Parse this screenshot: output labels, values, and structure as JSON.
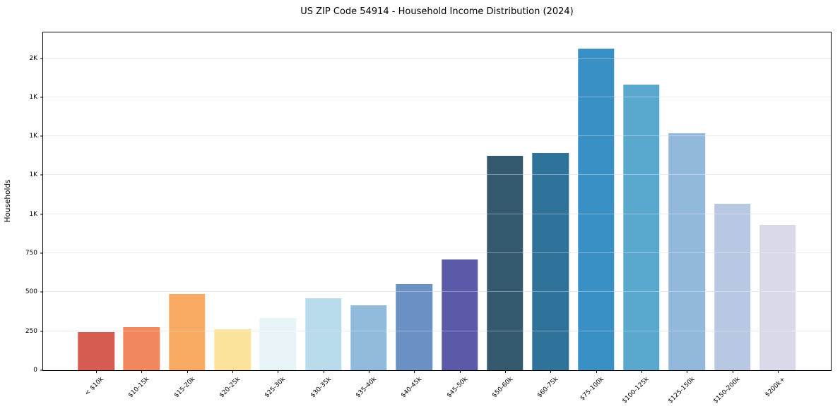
{
  "chart_data": {
    "type": "bar",
    "title": "US ZIP Code 54914 - Household Income Distribution (2024)",
    "xlabel": "",
    "ylabel": "Households",
    "categories": [
      "< $10k",
      "$10-15k",
      "$15-20k",
      "$20-25k",
      "$25-30k",
      "$30-35k",
      "$35-40k",
      "$40-45k",
      "$45-50k",
      "$50-60k",
      "$60-75k",
      "$75-100k",
      "$100-125k",
      "$125-150k",
      "$150-200k",
      "$200k+"
    ],
    "values": [
      245,
      275,
      490,
      262,
      335,
      460,
      415,
      550,
      710,
      1375,
      1390,
      2060,
      1830,
      1520,
      1065,
      930
    ],
    "bar_colors": [
      "#d65c52",
      "#f2875e",
      "#f9aa63",
      "#fbe39c",
      "#e7f3f6",
      "#b7dbeb",
      "#91bbdc",
      "#6b90c4",
      "#5b5aa8",
      "#35596d",
      "#30739a",
      "#3890c4",
      "#5ba8ce",
      "#92b9db",
      "#b9c8e2",
      "#d9d9e9"
    ],
    "y_ticks": [
      {
        "value": 0,
        "label": "0"
      },
      {
        "value": 250,
        "label": "250"
      },
      {
        "value": 500,
        "label": "500"
      },
      {
        "value": 750,
        "label": "750"
      },
      {
        "value": 1000,
        "label": "1K"
      },
      {
        "value": 1250,
        "label": "1K"
      },
      {
        "value": 1500,
        "label": "1K"
      },
      {
        "value": 1750,
        "label": "1K"
      },
      {
        "value": 2000,
        "label": "2K"
      }
    ],
    "ylim": [
      0,
      2165
    ],
    "grid": "horizontal",
    "legend": "none",
    "background_color": "#ffffff",
    "spine_color": "#000000",
    "gridline_color": "#e4e4e6"
  }
}
